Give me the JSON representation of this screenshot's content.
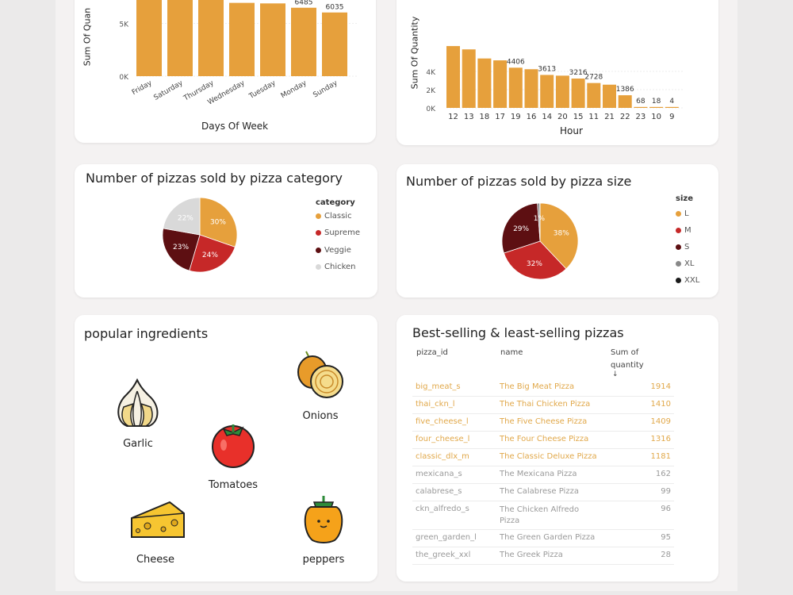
{
  "colors": {
    "accent": "#e6a03c",
    "supreme": "#c62828",
    "veggie": "#5d0f12",
    "chicken": "#d9d9d9",
    "xl": "#888888",
    "xxl": "#1a1a1a"
  },
  "day_chart": {
    "ylabel": "Sum Of Quan",
    "xlabel": "Days Of Week",
    "yticks": [
      "5K",
      "0K"
    ],
    "chart_data": {
      "type": "bar",
      "categories": [
        "Friday",
        "Saturday",
        "Thursday",
        "Wednesday",
        "Tuesday",
        "Monday",
        "Sunday"
      ],
      "values": [
        8242,
        7493,
        7478,
        6946,
        6895,
        6485,
        6035
      ],
      "data_labels": [
        "",
        "",
        "",
        "",
        "",
        "6485",
        "6035"
      ],
      "xlabel": "Days Of Week",
      "ylabel": "Sum Of Quan"
    }
  },
  "hour_chart": {
    "ylabel": "Sum Of Quantity",
    "xlabel": "Hour",
    "yticks": [
      "4K",
      "2K",
      "0K"
    ],
    "chart_data": {
      "type": "bar",
      "categories": [
        "12",
        "13",
        "18",
        "17",
        "19",
        "16",
        "14",
        "20",
        "15",
        "11",
        "21",
        "22",
        "23",
        "10",
        "9"
      ],
      "values": [
        6776,
        6413,
        5417,
        5211,
        4406,
        4239,
        3613,
        3534,
        3216,
        2728,
        2545,
        1386,
        68,
        18,
        4
      ],
      "data_labels": [
        "",
        "",
        "",
        "",
        "4406",
        "",
        "3613",
        "",
        "3216",
        "2728",
        "",
        "1386",
        "68",
        "18",
        "4"
      ],
      "xlabel": "Hour",
      "ylabel": "Sum Of Quantity"
    }
  },
  "category_chart": {
    "title": "Number of pizzas sold by pizza category",
    "legend_title": "category",
    "chart_data": {
      "type": "pie",
      "labels": [
        "Classic",
        "Supreme",
        "Veggie",
        "Chicken"
      ],
      "values": [
        30,
        24,
        23,
        22
      ],
      "data_labels": [
        "30%",
        "24%",
        "23%",
        "22%"
      ]
    }
  },
  "size_chart": {
    "title": "Number of pizzas sold by pizza size",
    "legend_title": "size",
    "chart_data": {
      "type": "pie",
      "labels": [
        "L",
        "M",
        "S",
        "XL",
        "XXL"
      ],
      "values": [
        38,
        32,
        29,
        1,
        0.1
      ],
      "data_labels": [
        "38%",
        "32%",
        "29%",
        "1%",
        ""
      ]
    }
  },
  "ingredients": {
    "title": "popular ingredients",
    "items": {
      "garlic": "Garlic",
      "onions": "Onions",
      "tomatoes": "Tomatoes",
      "cheese": "Cheese",
      "peppers": "peppers"
    }
  },
  "table": {
    "title": "Best-selling & least-selling pizzas",
    "headers": {
      "id": "pizza_id",
      "name": "name",
      "qty": "Sum of quantity"
    },
    "rows": [
      {
        "id": "big_meat_s",
        "name": "The Big Meat Pizza",
        "qty": "1914"
      },
      {
        "id": "thai_ckn_l",
        "name": "The Thai Chicken Pizza",
        "qty": "1410"
      },
      {
        "id": "five_cheese_l",
        "name": "The Five Cheese Pizza",
        "qty": "1409"
      },
      {
        "id": "four_cheese_l",
        "name": "The Four Cheese Pizza",
        "qty": "1316"
      },
      {
        "id": "classic_dlx_m",
        "name": "The Classic Deluxe Pizza",
        "qty": "1181"
      },
      {
        "id": "mexicana_s",
        "name": "The Mexicana Pizza",
        "qty": "162"
      },
      {
        "id": "calabrese_s",
        "name": "The Calabrese Pizza",
        "qty": "99"
      },
      {
        "id": "ckn_alfredo_s",
        "name": "The Chicken Alfredo Pizza",
        "qty": "96"
      },
      {
        "id": "green_garden_l",
        "name": "The Green Garden Pizza",
        "qty": "95"
      },
      {
        "id": "the_greek_xxl",
        "name": "The Greek Pizza",
        "qty": "28"
      }
    ]
  }
}
